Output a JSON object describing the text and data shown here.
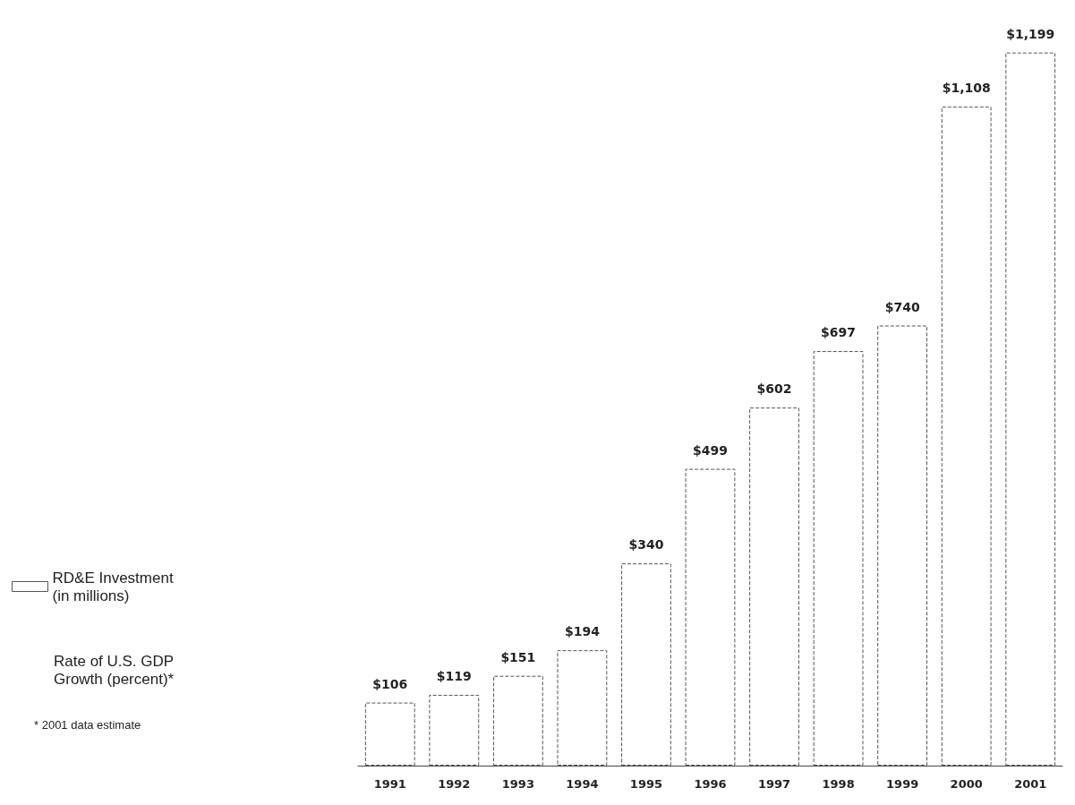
{
  "chart_data": {
    "type": "bar",
    "categories": [
      "1991",
      "1992",
      "1993",
      "1994",
      "1995",
      "1996",
      "1997",
      "1998",
      "1999",
      "2000",
      "2001"
    ],
    "series": [
      {
        "name": "RD&E Investment (in millions)",
        "color": "#555555",
        "values": [
          106,
          119,
          151,
          194,
          340,
          499,
          602,
          697,
          740,
          1108,
          1199
        ],
        "value_labels": [
          "$106",
          "$119",
          "$151",
          "$194",
          "$340",
          "$499",
          "$602",
          "$697",
          "$740",
          "$1,108",
          "$1,199"
        ]
      }
    ],
    "tick_labels": "x",
    "legend": "left",
    "annotations": [
      "Rate of U.S. GDP Growth (percent)*",
      "* 2001 data estimate"
    ]
  }
}
